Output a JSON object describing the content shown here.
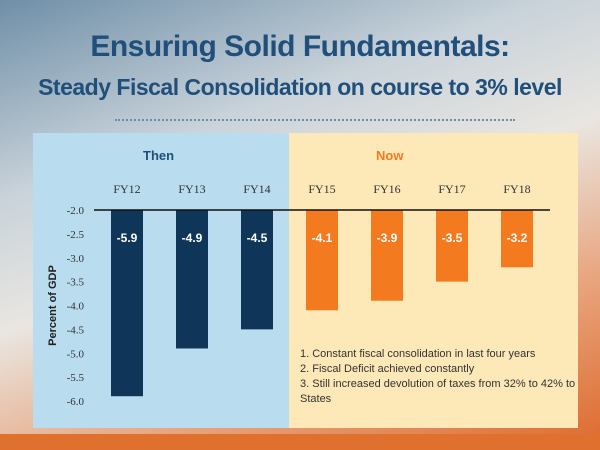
{
  "title": "Ensuring Solid Fundamentals:",
  "subtitle": "Steady Fiscal Consolidation on course to 3% level",
  "periods": {
    "then": "Then",
    "now": "Now"
  },
  "colors": {
    "then_bar": "#0f3658",
    "now_bar": "#f47a20",
    "then_bg": "#b9dcee",
    "now_bg": "#fde9b8"
  },
  "notes": [
    "1. Constant fiscal consolidation in last four years",
    "2. Fiscal Deficit achieved constantly",
    "3. Still increased devolution of taxes from 32% to 42% to States"
  ],
  "chart_data": {
    "type": "bar",
    "categories": [
      "FY12",
      "FY13",
      "FY14",
      "FY15",
      "FY16",
      "FY17",
      "FY18"
    ],
    "values": [
      -5.9,
      -4.9,
      -4.5,
      -4.1,
      -3.9,
      -3.5,
      -3.2
    ],
    "data_labels": [
      "-5.9",
      "-4.9",
      "-4.5",
      "-4.1",
      "-3.9",
      "-3.5",
      "-3.2"
    ],
    "period": [
      "Then",
      "Then",
      "Then",
      "Now",
      "Now",
      "Now",
      "Now"
    ],
    "xlabel": "",
    "ylabel": "Percent of GDP",
    "ylim": [
      -6.0,
      -2.0
    ],
    "yticks": [
      "-2.0",
      "-2.5",
      "-3.0",
      "-3.5",
      "-4.0",
      "-4.5",
      "-5.0",
      "-5.5",
      "-6.0"
    ],
    "grid": false,
    "legend": "none"
  }
}
